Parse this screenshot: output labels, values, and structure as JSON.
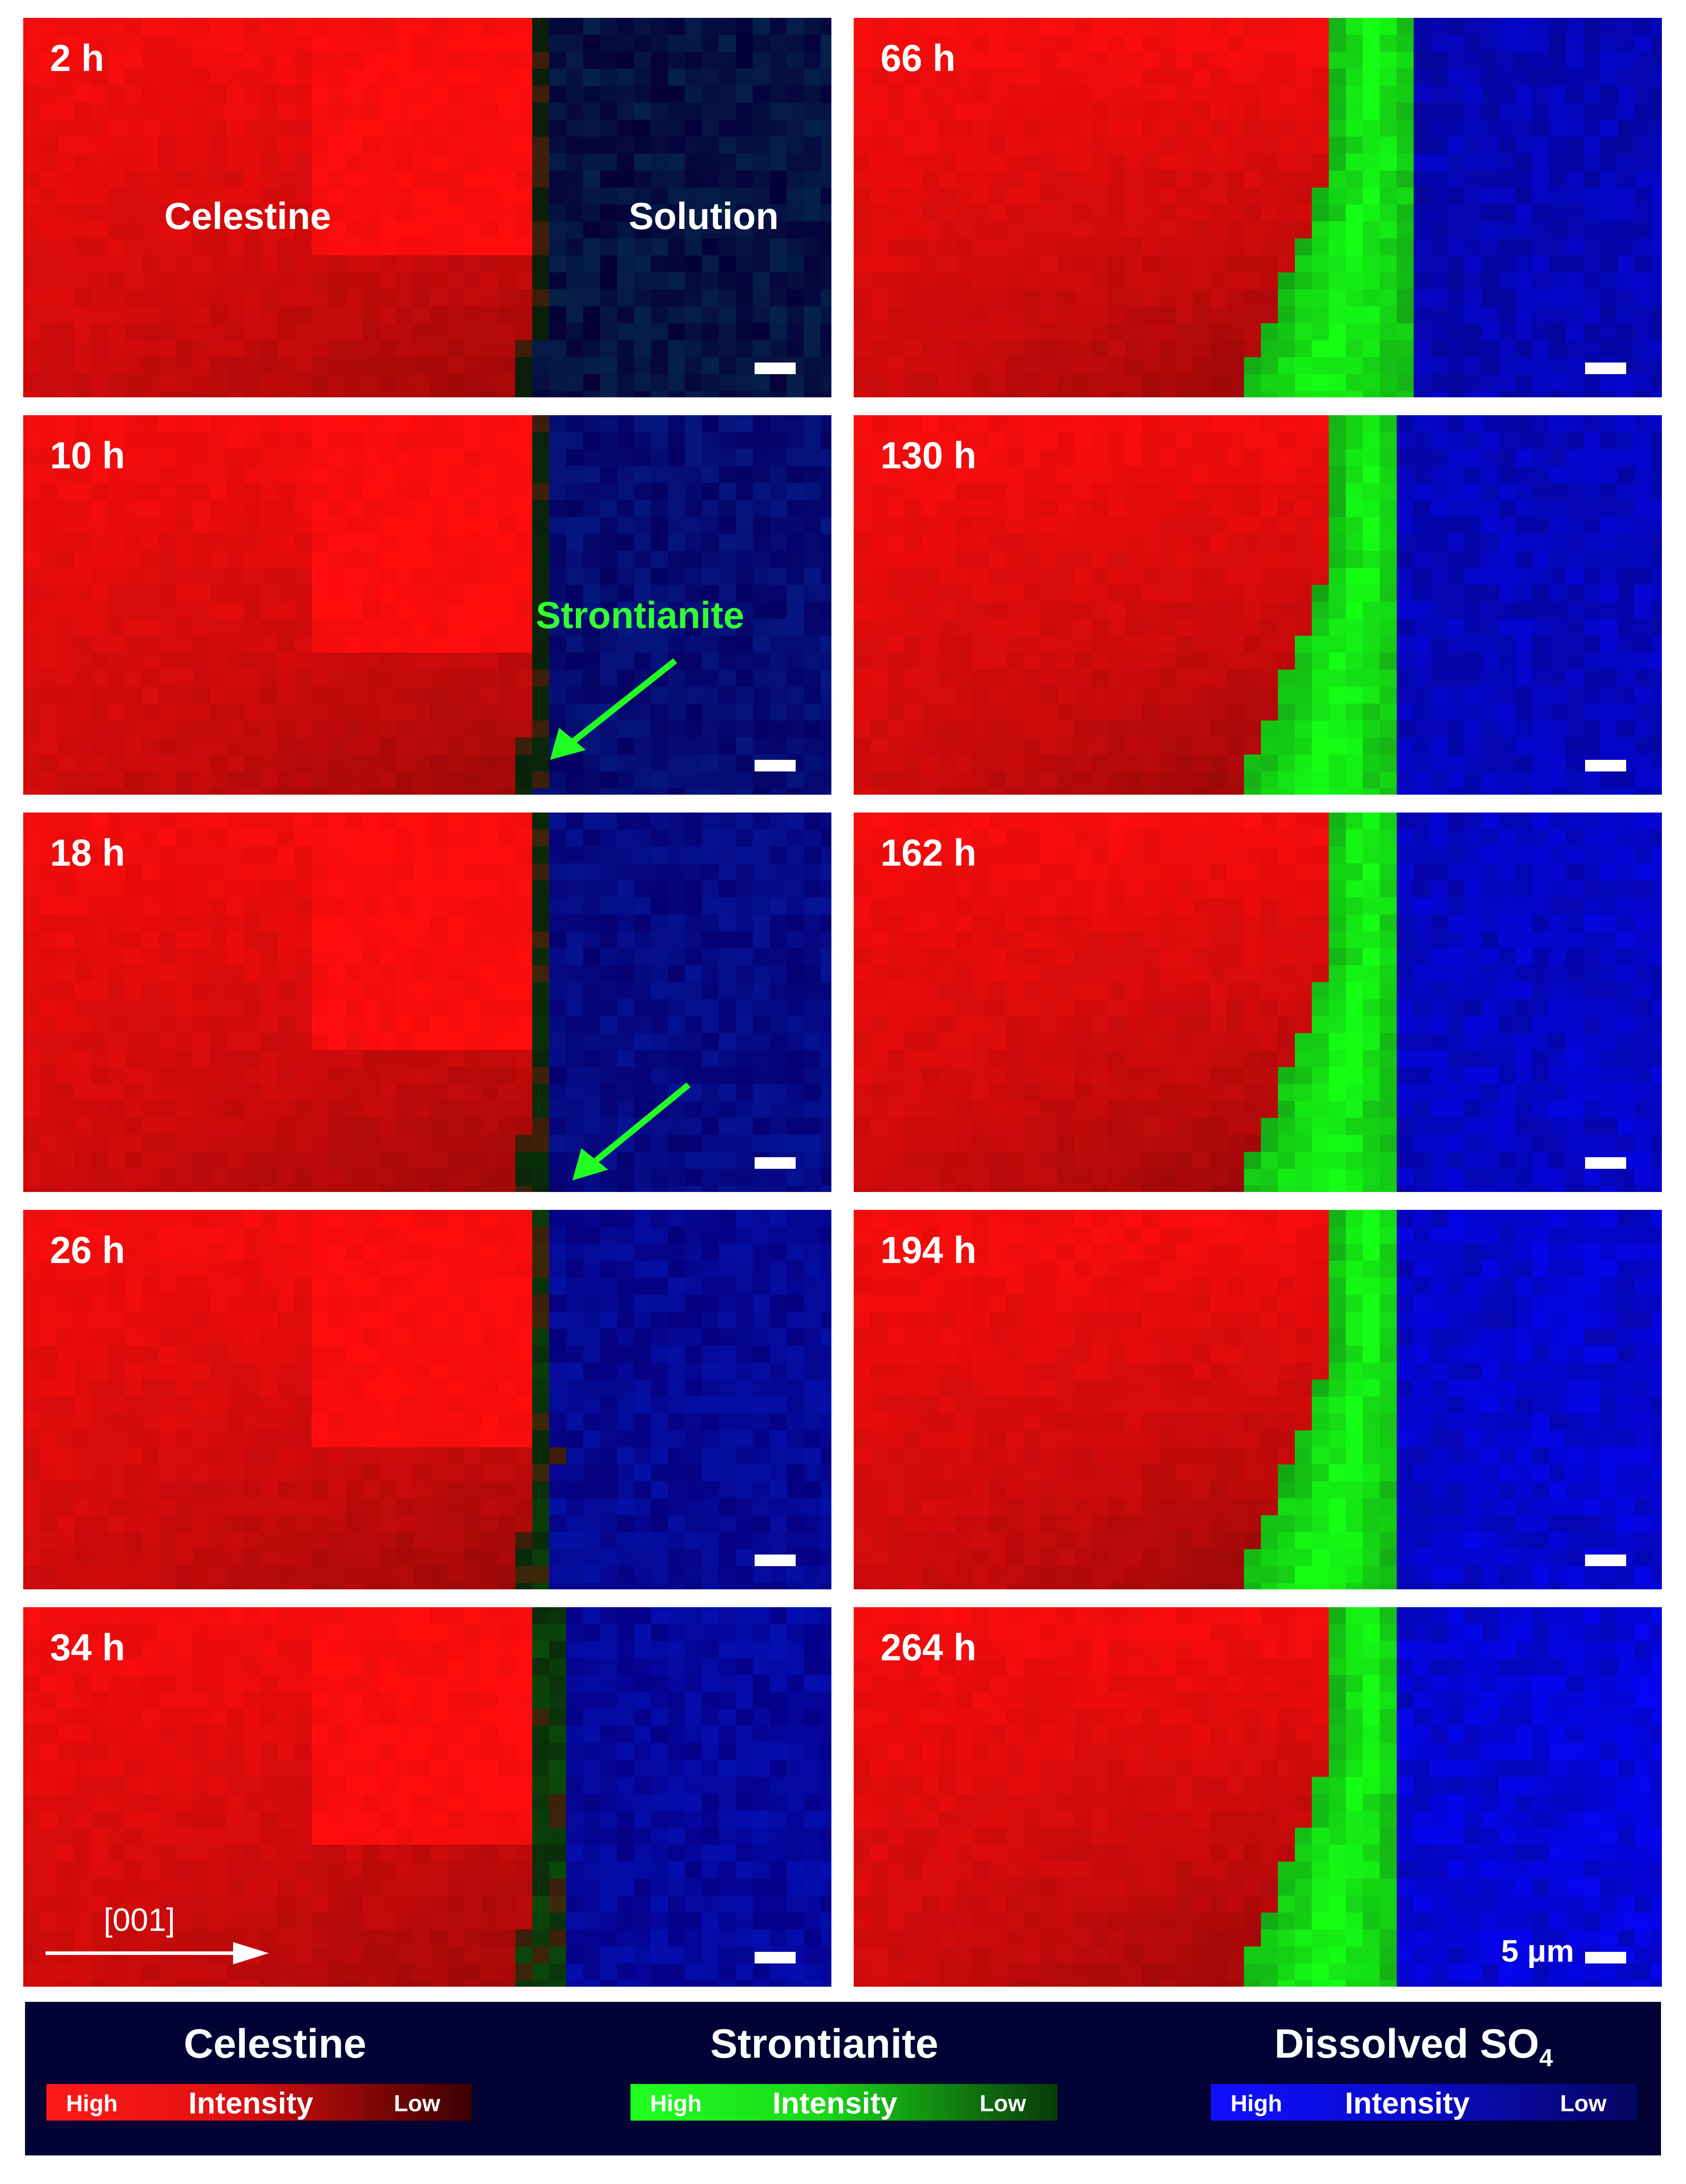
{
  "panels": [
    {
      "id": "p1",
      "time": "2 h",
      "interface_shift": 0,
      "green_level": 0,
      "blue_level": 0.05
    },
    {
      "id": "p2",
      "time": "10 h",
      "interface_shift": 0,
      "green_level": 0.1,
      "blue_level": 0.35
    },
    {
      "id": "p3",
      "time": "18 h",
      "interface_shift": 0,
      "green_level": 0.2,
      "blue_level": 0.45
    },
    {
      "id": "p4",
      "time": "26 h",
      "interface_shift": 0,
      "green_level": 0.35,
      "blue_level": 0.55
    },
    {
      "id": "p5",
      "time": "34 h",
      "interface_shift": 0,
      "green_level": 0.5,
      "blue_level": 0.6
    },
    {
      "id": "p6",
      "time": "66 h",
      "interface_shift": 1,
      "green_level": 1,
      "blue_level": 0.75
    },
    {
      "id": "p7",
      "time": "130 h",
      "interface_shift": 1,
      "green_level": 1,
      "blue_level": 0.8
    },
    {
      "id": "p8",
      "time": "162 h",
      "interface_shift": 1,
      "green_level": 1,
      "blue_level": 0.85
    },
    {
      "id": "p9",
      "time": "194 h",
      "interface_shift": 1,
      "green_level": 1,
      "blue_level": 0.9
    },
    {
      "id": "p10",
      "time": "264 h",
      "interface_shift": 1,
      "green_level": 1,
      "blue_level": 0.95
    }
  ],
  "annotations": {
    "celestine": "Celestine",
    "solution": "Solution",
    "strontianite": "Strontianite",
    "direction": "[001]",
    "scale": "5 μm"
  },
  "legend": {
    "celestine": {
      "title": "Celestine",
      "high": "High",
      "mid": "Intensity",
      "low": "Low",
      "color_high": "#ff1a1a",
      "color_low": "#3a0000"
    },
    "strontianite": {
      "title": "Strontianite",
      "high": "High",
      "mid": "Intensity",
      "low": "Low",
      "color_high": "#22ff22",
      "color_low": "#0a3a0a"
    },
    "sulfate": {
      "title_main": "Dissolved SO",
      "title_sub": "4",
      "high": "High",
      "mid": "Intensity",
      "low": "Low",
      "color_high": "#1010ff",
      "color_low": "#050560"
    }
  },
  "colors": {
    "celestine": "#ff1a1a",
    "strontianite": "#22ff22",
    "sulfate": "#1414e6",
    "legend_bg": "#020235",
    "arrow": "#22ff22"
  }
}
